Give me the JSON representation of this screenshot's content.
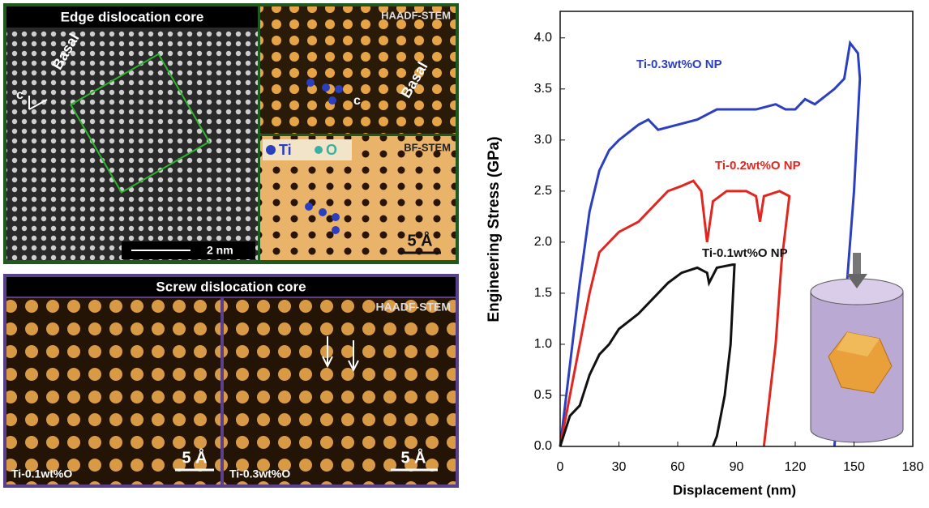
{
  "panels": {
    "edge": {
      "title": "Edge dislocation core",
      "c": "c",
      "basal": "Basal",
      "scale": "2 nm"
    },
    "haadf_top": {
      "label": "HAADF-STEM",
      "c": "c",
      "basal": "Basal"
    },
    "bf": {
      "label": "BF-STEM",
      "ti": "Ti",
      "o": "O",
      "scale": "5 Å"
    },
    "screw": {
      "title": "Screw dislocation core",
      "left_sample": "Ti-0.1wt%O",
      "left_scale": "5 Å",
      "right_label": "HAADF-STEM",
      "right_sample": "Ti-0.3wt%O",
      "right_scale": "5 Å"
    }
  },
  "chart_data": {
    "type": "line",
    "xlabel": "Displacement (nm)",
    "ylabel": "Engineering Stress (GPa)",
    "xlim": [
      0,
      180
    ],
    "xticks": [
      0,
      30,
      60,
      90,
      120,
      150,
      180
    ],
    "ylim": [
      0,
      4.26
    ],
    "yticks": [
      {
        "value": 0,
        "label": "0.0"
      },
      0.5,
      {
        "value": 1,
        "label": "1.0"
      },
      1.5,
      {
        "value": 2,
        "label": "2.0"
      },
      2.5,
      {
        "value": 3,
        "label": "3.0"
      },
      3.5,
      {
        "value": 4,
        "label": "4.0"
      }
    ],
    "series": [
      {
        "name": "Ti-0.3wt%O NP",
        "color": "#2b3fc0",
        "x": [
          0,
          5,
          10,
          15,
          20,
          25,
          30,
          40,
          45,
          50,
          60,
          70,
          80,
          90,
          100,
          110,
          115,
          120,
          125,
          130,
          140,
          145,
          148,
          150,
          152,
          153,
          150,
          146,
          143,
          140
        ],
        "values": [
          0,
          0.8,
          1.6,
          2.3,
          2.7,
          2.9,
          3.0,
          3.15,
          3.2,
          3.1,
          3.15,
          3.2,
          3.3,
          3.3,
          3.3,
          3.35,
          3.3,
          3.3,
          3.4,
          3.35,
          3.5,
          3.6,
          3.95,
          3.9,
          3.85,
          3.6,
          2.5,
          1.5,
          0.7,
          0
        ]
      },
      {
        "name": "Ti-0.2wt%O NP",
        "color": "#e0261f",
        "x": [
          0,
          5,
          10,
          15,
          20,
          25,
          30,
          40,
          50,
          55,
          62,
          68,
          72,
          75,
          78,
          85,
          95,
          100,
          102,
          104,
          112,
          117,
          113,
          110,
          107,
          104
        ],
        "values": [
          0,
          0.5,
          1.0,
          1.5,
          1.9,
          2.0,
          2.1,
          2.2,
          2.4,
          2.5,
          2.55,
          2.6,
          2.5,
          2.0,
          2.4,
          2.5,
          2.5,
          2.45,
          2.2,
          2.45,
          2.5,
          2.45,
          1.8,
          1.0,
          0.5,
          0
        ]
      },
      {
        "name": "Ti-0.1wt%O NP",
        "color": "#111111",
        "x": [
          0,
          5,
          10,
          15,
          20,
          25,
          30,
          40,
          50,
          55,
          62,
          70,
          75,
          76,
          80,
          88,
          89,
          87,
          84,
          80,
          78
        ],
        "values": [
          0,
          0.3,
          0.4,
          0.7,
          0.9,
          1.0,
          1.15,
          1.3,
          1.5,
          1.6,
          1.7,
          1.75,
          1.7,
          1.6,
          1.75,
          1.78,
          1.78,
          1.0,
          0.5,
          0.1,
          0
        ]
      }
    ]
  }
}
